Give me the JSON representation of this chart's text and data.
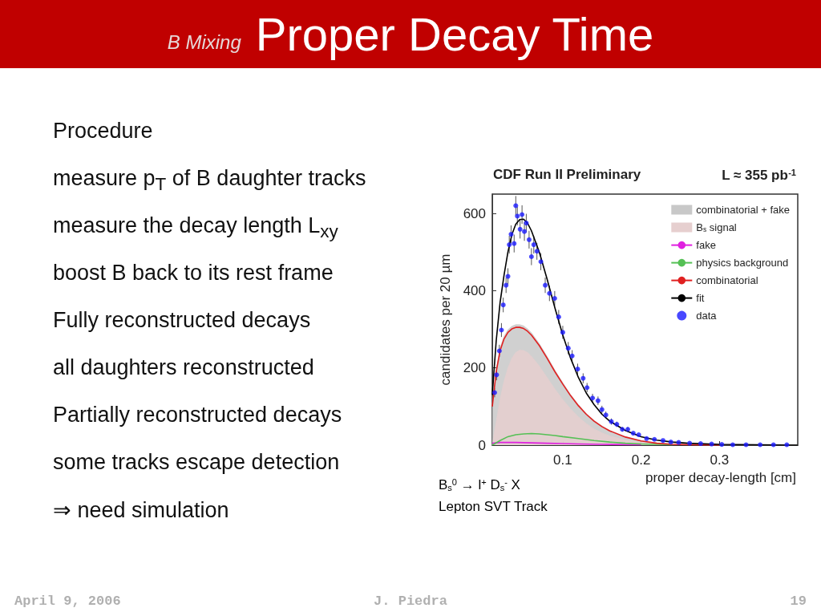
{
  "chart_data": [
    {
      "type": "other",
      "title": "Proper Decay Time",
      "subtitle": "B Mixing",
      "color": "#c00000",
      "annotations": [
        "Procedure",
        "measure p$_{T}$ of B daughter tracks",
        "measure the decay length L$_{xy}$",
        "boost B back to its rest frame",
        "Fully reconstructed decays",
        "all daughters reconstructed",
        "Partially reconstructed decays",
        "some tracks escape detection",
        "⇒ need simulation"
      ]
    },
    {
      "type": "line",
      "title": "CDF Run II Preliminary",
      "subtitle": "L ≈ 355 pb$^{-1}$",
      "xlabel": "proper decay-length [cm]",
      "ylabel": "candidates per 20 µm",
      "annotations": [
        "B$_{s}$$^{0}$ → l$^{+}$ D$_{s}$$^{-}$ X",
        "Lepton SVT Track"
      ],
      "xlim": [
        0.01,
        0.4
      ],
      "xticks": [
        0.1,
        0.2,
        0.3
      ],
      "ylim": [
        0,
        650
      ],
      "yticks": [
        0,
        200,
        400,
        600
      ],
      "legend": "top right",
      "marker": "none",
      "line_style": "solid",
      "series": [
        {
          "name": "combinatorial + fake",
          "type": "area",
          "color": "#c8c8c8",
          "x": [
            0.01,
            0.015,
            0.02,
            0.025,
            0.03,
            0.035,
            0.04,
            0.045,
            0.05,
            0.055,
            0.06,
            0.07,
            0.08,
            0.09,
            0.1,
            0.11,
            0.12,
            0.13,
            0.14,
            0.15,
            0.16,
            0.18,
            0.2,
            0.22,
            0.24,
            0.26,
            0.3,
            0.35,
            0.4
          ],
          "values": [
            105,
            197,
            252,
            282,
            299,
            308,
            312,
            312,
            309,
            301,
            291,
            263,
            230,
            194,
            162,
            131,
            105,
            82,
            64,
            50,
            38,
            22,
            12,
            6,
            3,
            2,
            0,
            0,
            0
          ]
        },
        {
          "name": "B$_{s}$ signal",
          "type": "area",
          "color": "#e6cfcf",
          "x": [
            0.01,
            0.015,
            0.02,
            0.025,
            0.03,
            0.035,
            0.04,
            0.045,
            0.05,
            0.055,
            0.06,
            0.07,
            0.08,
            0.09,
            0.1,
            0.11,
            0.12,
            0.13,
            0.14,
            0.15,
            0.16,
            0.18,
            0.2,
            0.22,
            0.24,
            0.26,
            0.3,
            0.35,
            0.4
          ],
          "values": [
            0,
            60,
            120,
            165,
            200,
            225,
            240,
            246,
            245,
            240,
            230,
            205,
            175,
            145,
            118,
            94,
            73,
            56,
            42,
            32,
            24,
            13,
            7,
            3,
            2,
            1,
            0,
            0,
            0
          ]
        },
        {
          "name": "fake",
          "type": "line",
          "color": "#e020e0",
          "x": [
            0.01,
            0.02,
            0.04,
            0.06,
            0.08,
            0.1,
            0.12,
            0.15,
            0.2
          ],
          "values": [
            5,
            7,
            7,
            6,
            5,
            4,
            3,
            2,
            1
          ]
        },
        {
          "name": "physics background",
          "type": "line",
          "color": "#55c055",
          "x": [
            0.01,
            0.02,
            0.03,
            0.04,
            0.05,
            0.06,
            0.07,
            0.08,
            0.09,
            0.1,
            0.12,
            0.14,
            0.16,
            0.18,
            0.2,
            0.22,
            0.24
          ],
          "values": [
            0,
            12,
            22,
            27,
            29,
            30,
            29,
            27,
            25,
            22,
            17,
            12,
            8,
            5,
            3,
            2,
            1
          ]
        },
        {
          "name": "combinatorial",
          "type": "line",
          "color": "#e02020",
          "x": [
            0.01,
            0.015,
            0.02,
            0.025,
            0.03,
            0.035,
            0.04,
            0.045,
            0.05,
            0.055,
            0.06,
            0.07,
            0.08,
            0.09,
            0.1,
            0.11,
            0.12,
            0.13,
            0.14,
            0.15,
            0.16,
            0.18,
            0.2,
            0.22,
            0.24,
            0.26,
            0.3
          ],
          "values": [
            100,
            190,
            245,
            275,
            292,
            301,
            305,
            305,
            302,
            295,
            285,
            258,
            225,
            190,
            158,
            128,
            102,
            80,
            62,
            48,
            37,
            21,
            11,
            5,
            2,
            1,
            0
          ]
        },
        {
          "name": "fit",
          "type": "line",
          "color": "#000000",
          "x": [
            0.01,
            0.015,
            0.02,
            0.025,
            0.03,
            0.035,
            0.04,
            0.045,
            0.05,
            0.055,
            0.06,
            0.07,
            0.08,
            0.09,
            0.1,
            0.11,
            0.12,
            0.13,
            0.14,
            0.15,
            0.16,
            0.18,
            0.2,
            0.22,
            0.24,
            0.26,
            0.3,
            0.35,
            0.4
          ],
          "values": [
            130,
            270,
            370,
            440,
            500,
            545,
            572,
            584,
            585,
            575,
            555,
            500,
            430,
            355,
            285,
            225,
            175,
            135,
            105,
            80,
            62,
            38,
            22,
            13,
            8,
            5,
            2,
            1,
            0
          ]
        },
        {
          "name": "data",
          "type": "scatter",
          "marker": "circle",
          "color": "#1a1aff",
          "x": [
            0.013,
            0.0155,
            0.019,
            0.0217,
            0.024,
            0.0276,
            0.03,
            0.0317,
            0.034,
            0.0379,
            0.04,
            0.042,
            0.0455,
            0.048,
            0.051,
            0.0534,
            0.057,
            0.06,
            0.063,
            0.067,
            0.072,
            0.0776,
            0.083,
            0.0897,
            0.0948,
            0.1,
            0.107,
            0.112,
            0.119,
            0.126,
            0.131,
            0.138,
            0.145,
            0.15,
            0.155,
            0.162,
            0.169,
            0.176,
            0.183,
            0.19,
            0.197,
            0.207,
            0.217,
            0.228,
            0.238,
            0.248,
            0.262,
            0.276,
            0.29,
            0.303,
            0.317,
            0.334,
            0.352,
            0.369,
            0.386
          ],
          "values": [
            136,
            182,
            244,
            298,
            363,
            414,
            437,
            519,
            546,
            522,
            620,
            593,
            559,
            597,
            553,
            575,
            532,
            488,
            519,
            502,
            475,
            414,
            393,
            380,
            332,
            292,
            251,
            231,
            197,
            173,
            149,
            122,
            115,
            92,
            78,
            61,
            54,
            41,
            41,
            31,
            27,
            17,
            15,
            12,
            8,
            7,
            5,
            4,
            3,
            2,
            1,
            1,
            1,
            1,
            1
          ],
          "errors": [
            12,
            14,
            16,
            18,
            19,
            20,
            21,
            23,
            23,
            23,
            25,
            24,
            24,
            24,
            24,
            24,
            23,
            22,
            23,
            22,
            22,
            20,
            20,
            19,
            18,
            17,
            16,
            15,
            14,
            13,
            12,
            11,
            11,
            10,
            9,
            8,
            7,
            6,
            6,
            null,
            null,
            null,
            null,
            null,
            null,
            null,
            null,
            null,
            null,
            null,
            null,
            null,
            null,
            null,
            null
          ]
        }
      ]
    },
    {
      "type": "other",
      "annotations": [
        "April 9, 2006",
        "J. Piedra",
        "19"
      ]
    }
  ]
}
